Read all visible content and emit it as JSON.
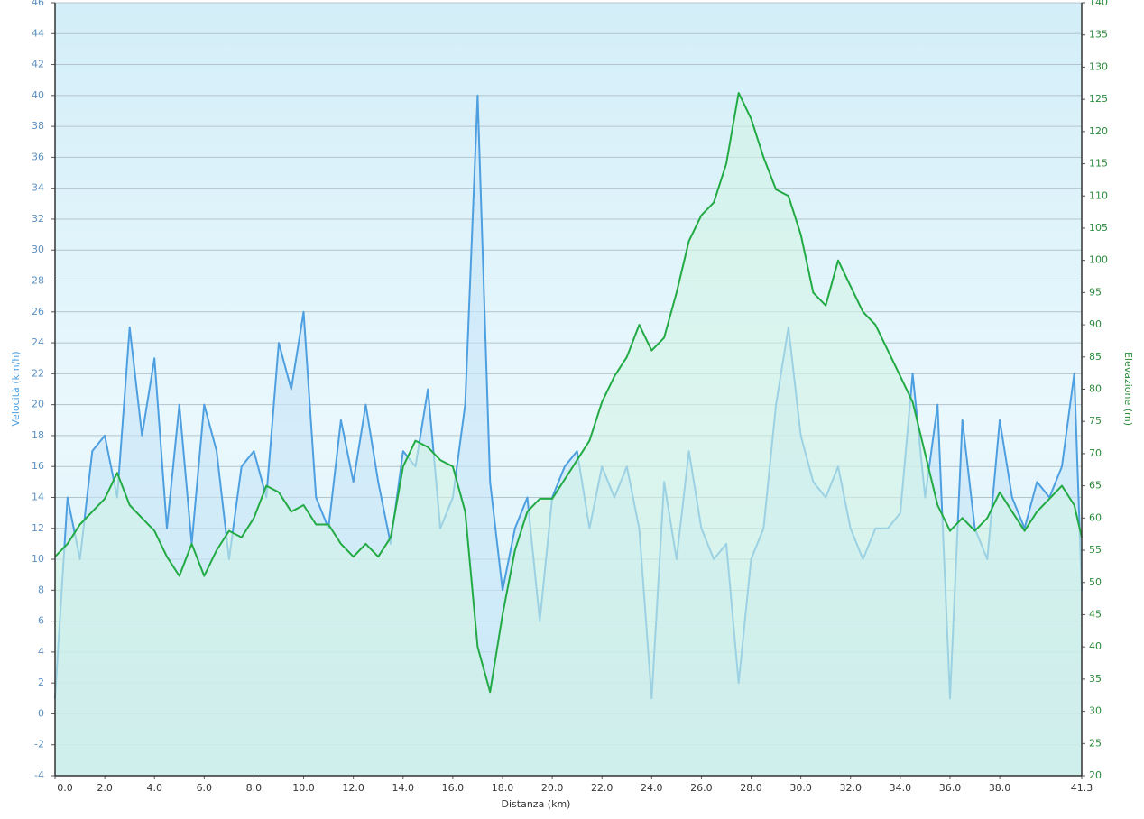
{
  "chart_data": {
    "type": "line",
    "xlabel": "Distanza  (km)",
    "ylabel": "Velocità (km/h)",
    "y2label": "Elevazione (m)",
    "x": [
      0,
      0.5,
      1,
      1.5,
      2,
      2.5,
      3,
      3.5,
      4,
      4.5,
      5,
      5.5,
      6,
      6.5,
      7,
      7.5,
      8,
      8.5,
      9,
      9.5,
      10,
      10.5,
      11,
      11.5,
      12,
      12.5,
      13,
      13.5,
      14,
      14.5,
      15,
      15.5,
      16,
      16.5,
      17,
      17.5,
      18,
      18.5,
      19,
      19.5,
      20,
      20.5,
      21,
      21.5,
      22,
      22.5,
      23,
      23.5,
      24,
      24.5,
      25,
      25.5,
      26,
      26.5,
      27,
      27.5,
      28,
      28.5,
      29,
      29.5,
      30,
      30.5,
      31,
      31.5,
      32,
      32.5,
      33,
      33.5,
      34,
      34.5,
      35,
      35.5,
      36,
      36.5,
      37,
      37.5,
      38,
      38.5,
      39,
      39.5,
      40,
      40.5,
      41,
      41.3
    ],
    "series": [
      {
        "name": "Velocità",
        "color": "#4d9fe0",
        "fill": "#c6e4f8",
        "values": [
          1,
          14,
          10,
          17,
          18,
          14,
          25,
          18,
          23,
          12,
          20,
          11,
          20,
          17,
          10,
          16,
          17,
          14,
          24,
          21,
          26,
          14,
          12,
          19,
          15,
          20,
          15,
          11,
          17,
          16,
          21,
          12,
          14,
          20,
          40,
          15,
          8,
          12,
          14,
          6,
          14,
          16,
          17,
          12,
          16,
          14,
          16,
          12,
          1,
          15,
          10,
          17,
          12,
          10,
          11,
          2,
          10,
          12,
          20,
          25,
          18,
          15,
          14,
          16,
          12,
          10,
          12,
          12,
          13,
          22,
          14,
          20,
          1,
          19,
          12,
          10,
          19,
          14,
          12,
          15,
          14,
          16,
          22,
          8
        ]
      },
      {
        "name": "Elevazione",
        "color": "#22aa44",
        "fill": "#d2f4e4",
        "axis": "y2",
        "values": [
          54,
          56,
          59,
          61,
          63,
          67,
          62,
          60,
          58,
          54,
          51,
          56,
          51,
          55,
          58,
          57,
          60,
          65,
          64,
          61,
          62,
          59,
          59,
          56,
          54,
          56,
          54,
          57,
          68,
          72,
          71,
          69,
          68,
          61,
          40,
          33,
          45,
          55,
          61,
          63,
          63,
          66,
          69,
          72,
          78,
          82,
          85,
          90,
          86,
          88,
          95,
          103,
          107,
          109,
          115,
          126,
          122,
          116,
          111,
          110,
          104,
          95,
          93,
          100,
          96,
          92,
          90,
          86,
          82,
          78,
          70,
          62,
          58,
          60,
          58,
          60,
          64,
          61,
          58,
          61,
          63,
          65,
          62,
          57
        ]
      }
    ],
    "xlim": [
      0,
      41.3
    ],
    "xticks": [
      {
        "value": 0,
        "label": "0.0"
      },
      {
        "value": 2,
        "label": "2.0"
      },
      {
        "value": 4,
        "label": "4.0"
      },
      {
        "value": 6,
        "label": "6.0"
      },
      {
        "value": 8,
        "label": "8.0"
      },
      {
        "value": 10,
        "label": "10.0"
      },
      {
        "value": 12,
        "label": "12.0"
      },
      {
        "value": 14,
        "label": "14.0"
      },
      {
        "value": 16,
        "label": "16.0"
      },
      {
        "value": 18,
        "label": "18.0"
      },
      {
        "value": 20,
        "label": "20.0"
      },
      {
        "value": 22,
        "label": "22.0"
      },
      {
        "value": 24,
        "label": "24.0"
      },
      {
        "value": 26,
        "label": "26.0"
      },
      {
        "value": 28,
        "label": "28.0"
      },
      {
        "value": 30,
        "label": "30.0"
      },
      {
        "value": 32,
        "label": "32.0"
      },
      {
        "value": 34,
        "label": "34.0"
      },
      {
        "value": 36,
        "label": "36.0"
      },
      {
        "value": 38,
        "label": "38.0"
      },
      41.3
    ],
    "ylim": [
      -4,
      46
    ],
    "yticks": [
      -4,
      -2,
      0,
      2,
      4,
      6,
      8,
      10,
      12,
      14,
      16,
      18,
      20,
      22,
      24,
      26,
      28,
      30,
      32,
      34,
      36,
      38,
      40,
      42,
      44,
      46
    ],
    "y2lim": [
      20,
      140
    ],
    "y2ticks": [
      20,
      25,
      30,
      35,
      40,
      45,
      50,
      55,
      60,
      65,
      70,
      75,
      80,
      85,
      90,
      95,
      100,
      105,
      110,
      115,
      120,
      125,
      130,
      135,
      140
    ],
    "grid": true
  }
}
